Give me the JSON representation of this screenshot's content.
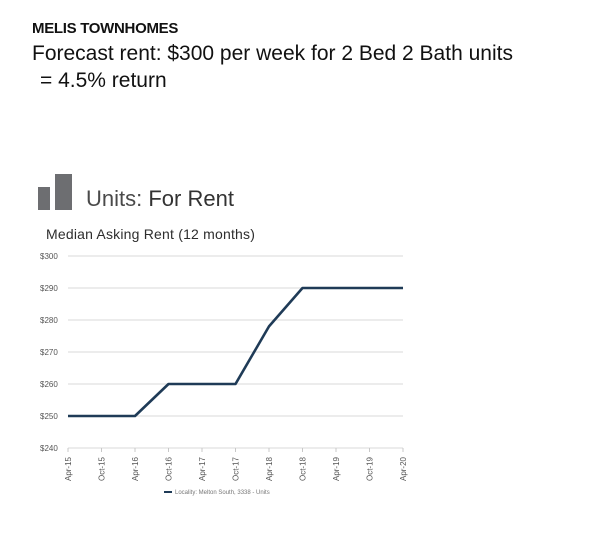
{
  "header": {
    "heading": "MELIS TOWNHOMES",
    "forecast_line1": "Forecast rent: $300 per week for 2 Bed 2 Bath units",
    "forecast_line2": "= 4.5% return"
  },
  "logo_icon": "building-logo-icon",
  "chart_header": {
    "title_prefix": "Units: ",
    "title_strong": "For Rent",
    "subtitle": "Median Asking Rent (12 months)"
  },
  "chart_data": {
    "type": "line",
    "title": "Median Asking Rent (12 months)",
    "xlabel": "",
    "ylabel": "",
    "x": [
      "Apr-15",
      "Oct-15",
      "Apr-16",
      "Oct-16",
      "Apr-17",
      "Oct-17",
      "Apr-18",
      "Oct-18",
      "Apr-19",
      "Oct-19",
      "Apr-20"
    ],
    "y_ticks": [
      "$240",
      "$250",
      "$260",
      "$270",
      "$280",
      "$290",
      "$300"
    ],
    "ylim": [
      240,
      300
    ],
    "grid": true,
    "legend_position": "bottom-center",
    "series": [
      {
        "name": "Locality: Melton South, 3338 - Units",
        "color": "#1f3b57",
        "values": [
          250,
          250,
          250,
          260,
          260,
          260,
          278,
          290,
          290,
          290,
          290
        ]
      }
    ]
  }
}
